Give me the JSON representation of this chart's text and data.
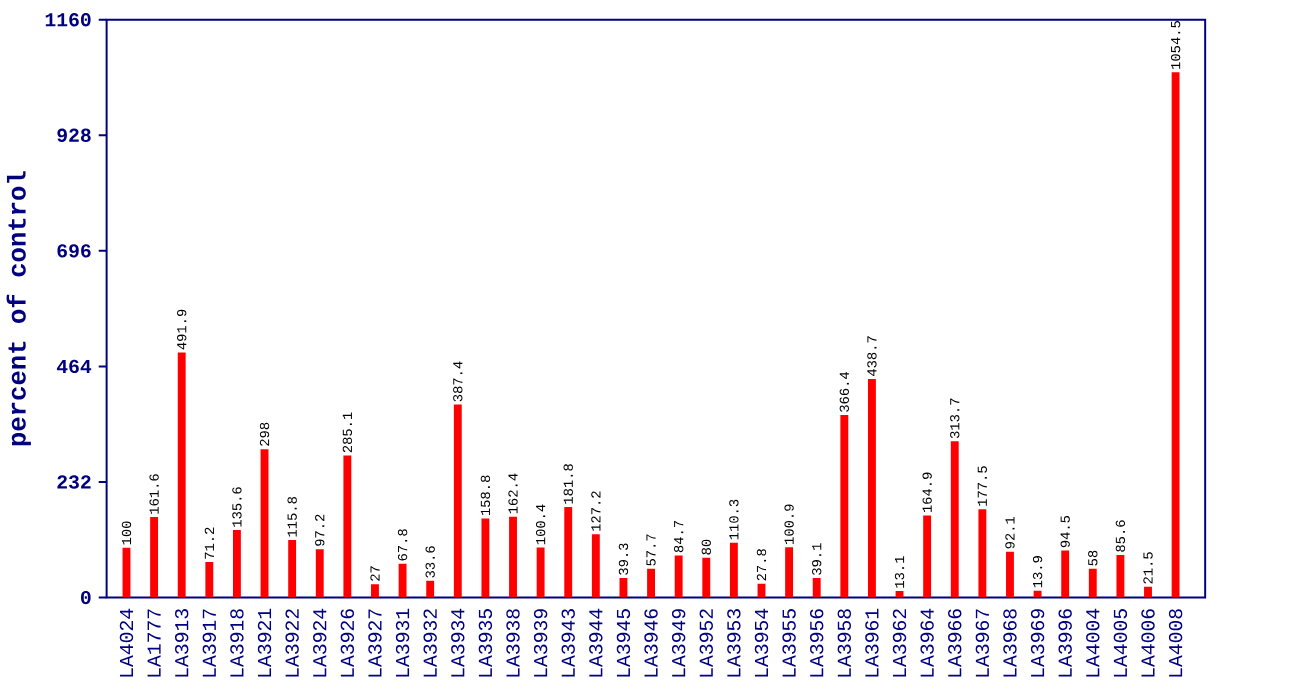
{
  "chart_data": {
    "type": "bar",
    "ylabel": "percent of control",
    "categories": [
      "LA4024",
      "LA1777",
      "LA3913",
      "LA3917",
      "LA3918",
      "LA3921",
      "LA3922",
      "LA3924",
      "LA3926",
      "LA3927",
      "LA3931",
      "LA3932",
      "LA3934",
      "LA3935",
      "LA3938",
      "LA3939",
      "LA3943",
      "LA3944",
      "LA3945",
      "LA3946",
      "LA3949",
      "LA3952",
      "LA3953",
      "LA3954",
      "LA3955",
      "LA3956",
      "LA3958",
      "LA3961",
      "LA3962",
      "LA3964",
      "LA3966",
      "LA3967",
      "LA3968",
      "LA3969",
      "LA3996",
      "LA4004",
      "LA4005",
      "LA4006",
      "LA4008"
    ],
    "values": [
      100,
      161.6,
      491.9,
      71.2,
      135.6,
      298,
      115.8,
      97.2,
      285.1,
      27,
      67.8,
      33.6,
      387.4,
      158.8,
      162.4,
      100.4,
      181.8,
      127.2,
      39.3,
      57.7,
      84.7,
      80,
      110.3,
      27.8,
      100.9,
      39.1,
      366.4,
      438.7,
      13.1,
      164.9,
      313.7,
      177.5,
      92.1,
      13.9,
      94.5,
      58,
      85.6,
      21.5,
      1054.5
    ],
    "value_labels": [
      "100",
      "161.6",
      "491.9",
      "71.2",
      "135.6",
      "298",
      "115.8",
      "97.2",
      "285.1",
      "27",
      "67.8",
      "33.6",
      "387.4",
      "158.8",
      "162.4",
      "100.4",
      "181.8",
      "127.2",
      "39.3",
      "57.7",
      "84.7",
      "80",
      "110.3",
      "27.8",
      "100.9",
      "39.1",
      "366.4",
      "438.7",
      "13.1",
      "164.9",
      "313.7",
      "177.5",
      "92.1",
      "13.9",
      "94.5",
      "58",
      "85.6",
      "21.5",
      "1054.5"
    ],
    "color": "#ff0000",
    "ylim": [
      0,
      1160
    ],
    "yticks": [
      0,
      232,
      464,
      696,
      928,
      1160
    ]
  }
}
